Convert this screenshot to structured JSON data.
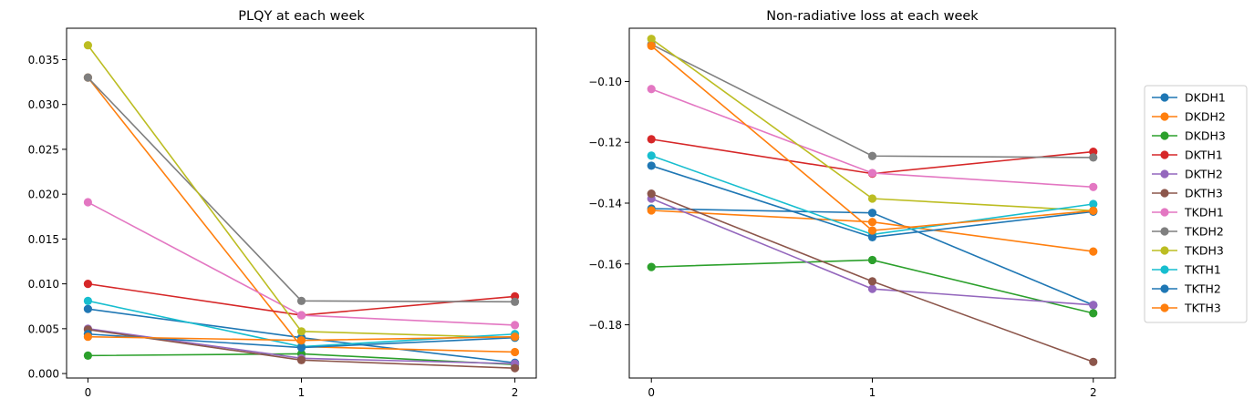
{
  "chart_data": [
    {
      "type": "line",
      "title": "PLQY at each week",
      "xlabel": "",
      "ylabel": "",
      "x": [
        0,
        1,
        2
      ],
      "xticks": [
        "0",
        "1",
        "2"
      ],
      "xlim": [
        -0.1,
        2.1
      ],
      "ylim": [
        -0.0005,
        0.0385
      ],
      "yticks": [
        "0.000",
        "0.005",
        "0.010",
        "0.015",
        "0.020",
        "0.025",
        "0.030",
        "0.035"
      ],
      "ytick_values": [
        0,
        0.005,
        0.01,
        0.015,
        0.02,
        0.025,
        0.03,
        0.035
      ],
      "grid": false,
      "series": [
        {
          "name": "DKDH1",
          "color": "#1f77b4",
          "values": [
            0.0072,
            0.004,
            0.0012
          ]
        },
        {
          "name": "DKDH2",
          "color": "#ff7f0e",
          "values": [
            0.033,
            0.003,
            0.0024
          ]
        },
        {
          "name": "DKDH3",
          "color": "#2ca02c",
          "values": [
            0.002,
            0.0022,
            0.001
          ]
        },
        {
          "name": "DKTH1",
          "color": "#d62728",
          "values": [
            0.01,
            0.0065,
            0.0086
          ]
        },
        {
          "name": "DKTH2",
          "color": "#9467bd",
          "values": [
            0.005,
            0.0017,
            0.0011
          ]
        },
        {
          "name": "DKTH3",
          "color": "#8c564b",
          "values": [
            0.0049,
            0.0015,
            0.0006
          ]
        },
        {
          "name": "TKDH1",
          "color": "#e377c2",
          "values": [
            0.0191,
            0.0065,
            0.0054
          ]
        },
        {
          "name": "TKDH2",
          "color": "#7f7f7f",
          "values": [
            0.033,
            0.0081,
            0.008
          ]
        },
        {
          "name": "TKDH3",
          "color": "#bcbd22",
          "values": [
            0.0366,
            0.0047,
            0.004
          ]
        },
        {
          "name": "TKTH1",
          "color": "#17becf",
          "values": [
            0.0081,
            0.003,
            0.0044
          ]
        },
        {
          "name": "TKTH2",
          "color": "#1f77b4",
          "values": [
            0.0044,
            0.0029,
            0.004
          ]
        },
        {
          "name": "TKTH3",
          "color": "#ff7f0e",
          "values": [
            0.0041,
            0.0037,
            0.0041
          ]
        }
      ]
    },
    {
      "type": "line",
      "title": "Non-radiative loss at each week",
      "xlabel": "",
      "ylabel": "",
      "x": [
        0,
        1,
        2
      ],
      "xticks": [
        "0",
        "1",
        "2"
      ],
      "xlim": [
        -0.1,
        2.1
      ],
      "ylim": [
        -0.1975,
        -0.0825
      ],
      "yticks": [
        "−0.10",
        "−0.12",
        "−0.14",
        "−0.16",
        "−0.18"
      ],
      "ytick_values": [
        -0.1,
        -0.12,
        -0.14,
        -0.16,
        -0.18
      ],
      "grid": false,
      "series": [
        {
          "name": "DKDH1",
          "color": "#1f77b4",
          "values": [
            -0.1418,
            -0.1432,
            -0.1735
          ]
        },
        {
          "name": "DKDH2",
          "color": "#ff7f0e",
          "values": [
            -0.1424,
            -0.1462,
            -0.1559
          ]
        },
        {
          "name": "DKDH3",
          "color": "#2ca02c",
          "values": [
            -0.161,
            -0.1587,
            -0.1762
          ]
        },
        {
          "name": "DKTH1",
          "color": "#d62728",
          "values": [
            -0.119,
            -0.1303,
            -0.1231
          ]
        },
        {
          "name": "DKTH2",
          "color": "#9467bd",
          "values": [
            -0.1385,
            -0.1682,
            -0.1735
          ]
        },
        {
          "name": "DKTH3",
          "color": "#8c564b",
          "values": [
            -0.1369,
            -0.1657,
            -0.1922
          ]
        },
        {
          "name": "TKDH1",
          "color": "#e377c2",
          "values": [
            -0.1025,
            -0.1301,
            -0.1347
          ]
        },
        {
          "name": "TKDH2",
          "color": "#7f7f7f",
          "values": [
            -0.0878,
            -0.1245,
            -0.125
          ]
        },
        {
          "name": "TKDH3",
          "color": "#bcbd22",
          "values": [
            -0.086,
            -0.1385,
            -0.1425
          ]
        },
        {
          "name": "TKTH1",
          "color": "#17becf",
          "values": [
            -0.1244,
            -0.1503,
            -0.1403
          ]
        },
        {
          "name": "TKTH2",
          "color": "#1f77b4",
          "values": [
            -0.1277,
            -0.1512,
            -0.1428
          ]
        },
        {
          "name": "TKTH3",
          "color": "#ff7f0e",
          "values": [
            -0.0883,
            -0.149,
            -0.1425
          ]
        }
      ]
    }
  ],
  "legend": {
    "placement": "right",
    "entries": [
      {
        "label": "DKDH1",
        "color": "#1f77b4"
      },
      {
        "label": "DKDH2",
        "color": "#ff7f0e"
      },
      {
        "label": "DKDH3",
        "color": "#2ca02c"
      },
      {
        "label": "DKTH1",
        "color": "#d62728"
      },
      {
        "label": "DKTH2",
        "color": "#9467bd"
      },
      {
        "label": "DKTH3",
        "color": "#8c564b"
      },
      {
        "label": "TKDH1",
        "color": "#e377c2"
      },
      {
        "label": "TKDH2",
        "color": "#7f7f7f"
      },
      {
        "label": "TKDH3",
        "color": "#bcbd22"
      },
      {
        "label": "TKTH1",
        "color": "#17becf"
      },
      {
        "label": "TKTH2",
        "color": "#1f77b4"
      },
      {
        "label": "TKTH3",
        "color": "#ff7f0e"
      }
    ]
  }
}
